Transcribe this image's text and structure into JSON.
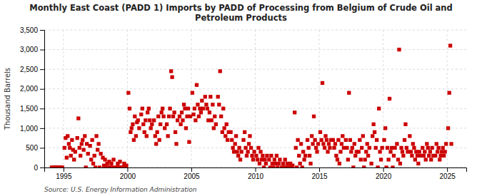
{
  "chart_data": {
    "type": "scatter",
    "title": "Monthly East Coast (PADD 1) Imports by PADD of Processing from Belgium of Crude Oil and\nPetroleum Products",
    "ylabel": "Thousand Barrels",
    "source": "Source: U.S. Energy Information Administration",
    "color": "#cc0000",
    "marker": "square",
    "grid": true,
    "xlim": [
      1993.5,
      2026.5
    ],
    "ylim": [
      0,
      3500
    ],
    "xticks": [
      1995,
      2000,
      2005,
      2010,
      2015,
      2020,
      2025
    ],
    "yticks": [
      0,
      500,
      {
        "value": 1000,
        "label": "1,000"
      },
      {
        "value": 1500,
        "label": "1,500"
      },
      {
        "value": 2000,
        "label": "2,000"
      },
      {
        "value": 2500,
        "label": "2,500"
      },
      {
        "value": 3000,
        "label": "3,000"
      },
      {
        "value": 3500,
        "label": "3,500"
      }
    ],
    "x": [
      1994.08,
      1994.17,
      1994.25,
      1994.33,
      1994.42,
      1994.5,
      1994.58,
      1994.67,
      1994.75,
      1994.83,
      1994.92,
      1995.08,
      1995.17,
      1995.25,
      1995.33,
      1995.42,
      1995.5,
      1995.58,
      1995.67,
      1995.75,
      1995.83,
      1995.92,
      1996.08,
      1996.17,
      1996.25,
      1996.33,
      1996.42,
      1996.5,
      1996.58,
      1996.67,
      1996.75,
      1996.83,
      1996.92,
      1997.08,
      1997.17,
      1997.25,
      1997.33,
      1997.42,
      1997.5,
      1997.58,
      1997.67,
      1997.75,
      1997.83,
      1997.92,
      1998.08,
      1998.17,
      1998.25,
      1998.33,
      1998.42,
      1998.5,
      1998.58,
      1998.67,
      1998.75,
      1998.83,
      1998.92,
      1999.08,
      1999.17,
      1999.25,
      1999.33,
      1999.42,
      1999.5,
      1999.58,
      1999.67,
      1999.75,
      1999.83,
      1999.92,
      2000.08,
      2000.17,
      2000.25,
      2000.33,
      2000.42,
      2000.5,
      2000.58,
      2000.67,
      2000.75,
      2000.83,
      2000.92,
      2001.08,
      2001.17,
      2001.25,
      2001.33,
      2001.42,
      2001.5,
      2001.58,
      2001.67,
      2001.75,
      2001.83,
      2001.92,
      2002.08,
      2002.17,
      2002.25,
      2002.33,
      2002.42,
      2002.5,
      2002.58,
      2002.67,
      2002.75,
      2002.83,
      2002.92,
      2003.08,
      2003.17,
      2003.25,
      2003.33,
      2003.42,
      2003.5,
      2003.58,
      2003.67,
      2003.75,
      2003.83,
      2003.92,
      2004.08,
      2004.17,
      2004.25,
      2004.33,
      2004.42,
      2004.5,
      2004.58,
      2004.67,
      2004.75,
      2004.83,
      2004.92,
      2005.08,
      2005.17,
      2005.25,
      2005.33,
      2005.42,
      2005.5,
      2005.58,
      2005.67,
      2005.75,
      2005.83,
      2005.92,
      2006.08,
      2006.17,
      2006.25,
      2006.33,
      2006.42,
      2006.5,
      2006.58,
      2006.67,
      2006.75,
      2006.83,
      2006.92,
      2007.08,
      2007.17,
      2007.25,
      2007.33,
      2007.42,
      2007.5,
      2007.58,
      2007.67,
      2007.75,
      2007.83,
      2007.92,
      2008.08,
      2008.17,
      2008.25,
      2008.33,
      2008.42,
      2008.5,
      2008.58,
      2008.67,
      2008.75,
      2008.83,
      2008.92,
      2009.08,
      2009.17,
      2009.25,
      2009.33,
      2009.42,
      2009.5,
      2009.58,
      2009.67,
      2009.75,
      2009.83,
      2009.92,
      2010.08,
      2010.17,
      2010.25,
      2010.33,
      2010.42,
      2010.5,
      2010.58,
      2010.67,
      2010.75,
      2010.83,
      2010.92,
      2011.08,
      2011.17,
      2011.25,
      2011.33,
      2011.42,
      2011.5,
      2011.58,
      2011.67,
      2011.75,
      2011.83,
      2011.92,
      2012.08,
      2012.17,
      2012.25,
      2012.33,
      2012.42,
      2012.5,
      2012.58,
      2012.67,
      2012.75,
      2012.83,
      2012.92,
      2013.08,
      2013.17,
      2013.25,
      2013.33,
      2013.42,
      2013.5,
      2013.58,
      2013.67,
      2013.75,
      2013.83,
      2013.92,
      2014.08,
      2014.17,
      2014.25,
      2014.33,
      2014.42,
      2014.5,
      2014.58,
      2014.67,
      2014.75,
      2014.83,
      2014.92,
      2015.08,
      2015.17,
      2015.25,
      2015.33,
      2015.42,
      2015.5,
      2015.58,
      2015.67,
      2015.75,
      2015.83,
      2015.92,
      2016.08,
      2016.17,
      2016.25,
      2016.33,
      2016.42,
      2016.5,
      2016.58,
      2016.67,
      2016.75,
      2016.83,
      2016.92,
      2017.08,
      2017.17,
      2017.25,
      2017.33,
      2017.42,
      2017.5,
      2017.58,
      2017.67,
      2017.75,
      2017.83,
      2017.92,
      2018.08,
      2018.17,
      2018.25,
      2018.33,
      2018.42,
      2018.5,
      2018.58,
      2018.67,
      2018.75,
      2018.83,
      2018.92,
      2019.08,
      2019.17,
      2019.25,
      2019.33,
      2019.42,
      2019.5,
      2019.58,
      2019.67,
      2019.75,
      2019.83,
      2019.92,
      2020.08,
      2020.17,
      2020.25,
      2020.33,
      2020.42,
      2020.5,
      2020.58,
      2020.67,
      2020.75,
      2020.83,
      2020.92,
      2021.08,
      2021.17,
      2021.25,
      2021.33,
      2021.42,
      2021.5,
      2021.58,
      2021.67,
      2021.75,
      2021.83,
      2021.92,
      2022.08,
      2022.17,
      2022.25,
      2022.33,
      2022.42,
      2022.5,
      2022.58,
      2022.67,
      2022.75,
      2022.83,
      2022.92,
      2023.08,
      2023.17,
      2023.25,
      2023.33,
      2023.42,
      2023.5,
      2023.58,
      2023.67,
      2023.75,
      2023.83,
      2023.92,
      2024.08,
      2024.17,
      2024.25,
      2024.33,
      2024.42,
      2024.5,
      2024.58,
      2024.67,
      2024.75,
      2024.83,
      2024.92,
      2025.08,
      2025.17,
      2025.25,
      2025.33
    ],
    "values": [
      0,
      0,
      0,
      0,
      0,
      5,
      0,
      0,
      0,
      0,
      0,
      500,
      750,
      250,
      800,
      600,
      500,
      300,
      700,
      450,
      200,
      400,
      750,
      1250,
      500,
      300,
      600,
      700,
      450,
      800,
      0,
      600,
      350,
      550,
      200,
      700,
      100,
      300,
      0,
      800,
      450,
      600,
      0,
      350,
      250,
      50,
      200,
      0,
      100,
      0,
      150,
      0,
      100,
      0,
      200,
      0,
      0,
      100,
      0,
      150,
      0,
      0,
      0,
      100,
      0,
      50,
      1900,
      1500,
      900,
      1000,
      1100,
      700,
      1300,
      800,
      1150,
      1200,
      1000,
      1350,
      1500,
      1100,
      900,
      1200,
      800,
      1400,
      1500,
      1200,
      1000,
      1100,
      1200,
      800,
      600,
      900,
      1300,
      700,
      1100,
      1400,
      1500,
      1300,
      1000,
      1100,
      800,
      1300,
      1500,
      2450,
      2300,
      1300,
      1400,
      900,
      600,
      1200,
      1300,
      1100,
      1400,
      1200,
      1600,
      1500,
      1000,
      1300,
      1500,
      650,
      1300,
      1900,
      1350,
      1500,
      1200,
      2100,
      1600,
      1300,
      1500,
      1400,
      1700,
      1500,
      1800,
      1600,
      1500,
      1200,
      1400,
      1800,
      1200,
      1600,
      1000,
      1300,
      1100,
      1800,
      1600,
      2450,
      1300,
      900,
      1500,
      1000,
      800,
      1100,
      700,
      900,
      900,
      700,
      500,
      400,
      600,
      800,
      400,
      300,
      500,
      200,
      400,
      700,
      900,
      500,
      300,
      400,
      600,
      800,
      500,
      300,
      200,
      400,
      300,
      200,
      500,
      100,
      400,
      200,
      300,
      0,
      200,
      100,
      300,
      200,
      0,
      300,
      100,
      0,
      200,
      100,
      300,
      0,
      100,
      200,
      0,
      100,
      0,
      200,
      0,
      100,
      0,
      0,
      100,
      0,
      50,
      1400,
      500,
      0,
      700,
      300,
      100,
      600,
      0,
      400,
      200,
      300,
      700,
      500,
      300,
      100,
      800,
      600,
      1300,
      700,
      500,
      400,
      600,
      900,
      700,
      2150,
      600,
      500,
      800,
      700,
      400,
      600,
      500,
      700,
      700,
      500,
      600,
      300,
      200,
      700,
      100,
      400,
      600,
      800,
      500,
      700,
      500,
      200,
      1900,
      700,
      400,
      500,
      0,
      600,
      300,
      400,
      400,
      700,
      200,
      500,
      800,
      0,
      200,
      400,
      600,
      300,
      500,
      100,
      800,
      1100,
      900,
      500,
      700,
      0,
      1500,
      400,
      200,
      500,
      700,
      1000,
      0,
      500,
      200,
      1750,
      400,
      500,
      0,
      300,
      500,
      600,
      200,
      3000,
      100,
      500,
      400,
      300,
      700,
      1100,
      500,
      400,
      800,
      400,
      300,
      600,
      500,
      200,
      400,
      300,
      100,
      400,
      300,
      500,
      300,
      400,
      200,
      600,
      500,
      300,
      400,
      200,
      500,
      300,
      300,
      600,
      400,
      500,
      200,
      300,
      400,
      500,
      300,
      400,
      600,
      1000,
      1900,
      3100,
      600
    ]
  }
}
